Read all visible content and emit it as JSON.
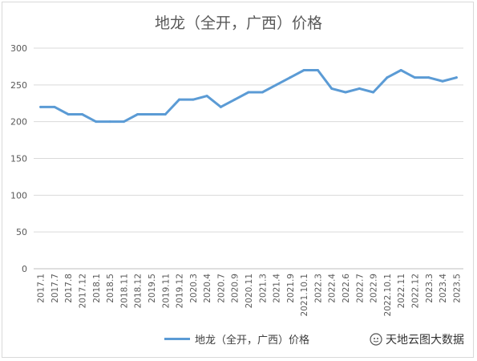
{
  "chart_data": {
    "type": "line",
    "title": "地龙（全开，广西）价格",
    "xlabel": "",
    "ylabel": "",
    "ylim": [
      0,
      300
    ],
    "yticks": [
      0,
      50,
      100,
      150,
      200,
      250,
      300
    ],
    "grid": true,
    "legend_position": "bottom",
    "categories": [
      "2017.1",
      "2017.7",
      "2017.8",
      "2017.12",
      "2018.1",
      "2018.5",
      "2018.11",
      "2018.12",
      "2019.5",
      "2019.11",
      "2019.12",
      "2020.3",
      "2020.4",
      "2020.7",
      "2020.9",
      "2020.11",
      "2021.3",
      "2021.4",
      "2021.9",
      "2021.10.1",
      "2022.3",
      "2022.4",
      "2022.6",
      "2022.7",
      "2022.9",
      "2022.10.1",
      "2022.11",
      "2022.12",
      "2023.3",
      "2023.4",
      "2023.5"
    ],
    "series": [
      {
        "name": "地龙（全开，广西）价格",
        "color": "#5b9bd5",
        "values": [
          220,
          220,
          210,
          210,
          200,
          200,
          200,
          210,
          210,
          210,
          230,
          230,
          235,
          220,
          230,
          240,
          240,
          250,
          260,
          270,
          270,
          245,
          240,
          245,
          240,
          260,
          270,
          260,
          260,
          255,
          260
        ]
      }
    ]
  },
  "watermark": {
    "text": "天地云图大数据",
    "icon": "wechat-icon"
  }
}
